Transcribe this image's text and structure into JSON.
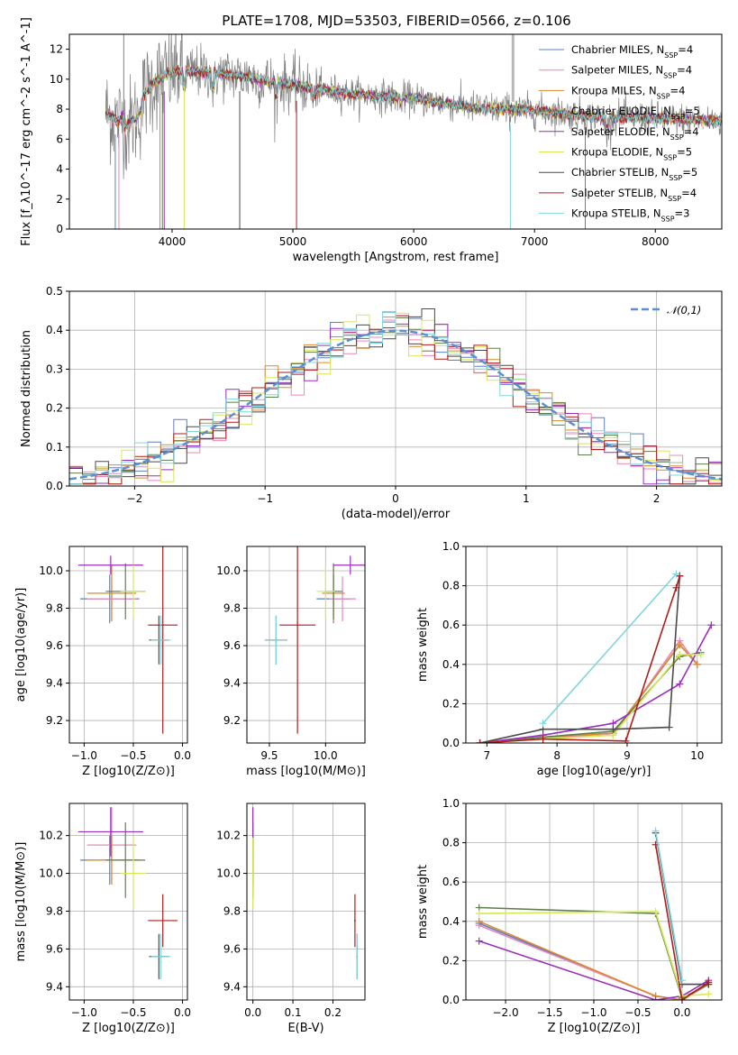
{
  "chart_data": [
    {
      "id": "spectrum",
      "type": "line",
      "title": "PLATE=1708, MJD=53503, FIBERID=0566, z=0.106",
      "xlabel": "wavelength [Angstrom, rest frame]",
      "ylabel": "Flux [f_λ10^-17 erg cm^-2 s^-1 A^-1]",
      "xlim": [
        3150,
        8550
      ],
      "ylim": [
        0,
        13
      ],
      "xticks": [
        4000,
        5000,
        6000,
        7000,
        8000
      ],
      "yticks": [
        0,
        2,
        4,
        6,
        8,
        10,
        12
      ],
      "grid": false,
      "legend_position": "top-right",
      "data_color": "#808080",
      "continuum": {
        "x": [
          3450,
          3550,
          3700,
          3850,
          4000,
          4200,
          4500,
          5000,
          5500,
          6000,
          6500,
          7000,
          7500,
          8000,
          8550
        ],
        "y": [
          7.8,
          7.2,
          8.2,
          9.8,
          10.5,
          10.5,
          10.3,
          9.6,
          9.0,
          8.7,
          8.1,
          7.9,
          7.5,
          7.4,
          7.2
        ]
      },
      "absorption_lines": [
        3530,
        3560,
        3900,
        3920,
        3935,
        4100,
        4560,
        5030,
        6800,
        7420
      ],
      "series": [
        {
          "name": "Chabrier MILES, N_SSP=4",
          "color": "#5b7fc4"
        },
        {
          "name": "Salpeter MILES, N_SSP=4",
          "color": "#e987b8"
        },
        {
          "name": "Kroupa MILES, N_SSP=4",
          "color": "#d98a2b"
        },
        {
          "name": "Chabrier ELODIE, N_SSP=5",
          "color": "#5e7f4c"
        },
        {
          "name": "Salpeter ELODIE, N_SSP=4",
          "color": "#9a2ebd"
        },
        {
          "name": "Kroupa ELODIE, N_SSP=5",
          "color": "#d7e855"
        },
        {
          "name": "Chabrier STELIB, N_SSP=5",
          "color": "#4a4a4a"
        },
        {
          "name": "Salpeter STELIB, N_SSP=4",
          "color": "#b01c1c"
        },
        {
          "name": "Kroupa STELIB, N_SSP=3",
          "color": "#7fd6de"
        }
      ]
    },
    {
      "id": "residuals",
      "type": "histogram",
      "xlabel": "(data-model)/error",
      "ylabel": "Normed distribution",
      "xlim": [
        -2.5,
        2.5
      ],
      "ylim": [
        0,
        0.5
      ],
      "xticks": [
        -2,
        -1,
        0,
        1,
        2
      ],
      "yticks": [
        0.0,
        0.1,
        0.2,
        0.3,
        0.4,
        0.5
      ],
      "grid": true,
      "legend_position": "top-right",
      "bin_width": 0.1,
      "reference_curve": {
        "name": "𝒩(0,1)",
        "color": "#5b8fd4"
      }
    },
    {
      "id": "age-vs-Z",
      "type": "scatter",
      "xlabel": "Z [log10(Z/Z⊙)]",
      "ylabel": "age [log10(age/yr)]",
      "xlim": [
        -1.15,
        0.05
      ],
      "ylim": [
        9.08,
        10.13
      ],
      "xticks": [
        -1.0,
        -0.5,
        0.0
      ],
      "yticks": [
        9.2,
        9.4,
        9.6,
        9.8,
        10.0
      ],
      "grid": true
    },
    {
      "id": "age-vs-mass",
      "type": "scatter",
      "xlabel": "mass [log10(M/M⊙)]",
      "ylabel": "",
      "xlim": [
        9.3,
        10.35
      ],
      "ylim": [
        9.08,
        10.13
      ],
      "xticks": [
        9.5,
        10.0
      ],
      "yticks": [
        9.2,
        9.4,
        9.6,
        9.8,
        10.0
      ],
      "grid": true
    },
    {
      "id": "mass-weight-vs-age",
      "type": "line",
      "xlabel": "age [log10(age/yr)]",
      "ylabel": "mass weight",
      "xlim": [
        6.7,
        10.35
      ],
      "ylim": [
        0,
        1.0
      ],
      "xticks": [
        7,
        8,
        9,
        10
      ],
      "yticks": [
        0.0,
        0.2,
        0.4,
        0.6,
        0.8,
        1.0
      ],
      "grid": true,
      "series": [
        {
          "color": "#5b7fc4",
          "x": [
            6.9,
            7.8,
            8.8,
            9.75,
            10.0
          ],
          "y": [
            0.0,
            0.03,
            0.05,
            0.5,
            0.4
          ]
        },
        {
          "color": "#e987b8",
          "x": [
            6.9,
            7.8,
            8.8,
            9.75,
            10.0
          ],
          "y": [
            0.0,
            0.03,
            0.04,
            0.52,
            0.4
          ]
        },
        {
          "color": "#d98a2b",
          "x": [
            6.9,
            7.8,
            8.8,
            9.75,
            10.0
          ],
          "y": [
            0.0,
            0.03,
            0.05,
            0.5,
            0.4
          ]
        },
        {
          "color": "#5e7f4c",
          "x": [
            6.9,
            7.8,
            8.8,
            9.75,
            10.05
          ],
          "y": [
            0.0,
            0.03,
            0.06,
            0.44,
            0.46
          ]
        },
        {
          "color": "#9a2ebd",
          "x": [
            6.9,
            7.8,
            8.8,
            9.75,
            10.2
          ],
          "y": [
            0.0,
            0.04,
            0.1,
            0.3,
            0.6
          ]
        },
        {
          "color": "#d7e855",
          "x": [
            6.9,
            7.8,
            8.8,
            9.75,
            10.05
          ],
          "y": [
            0.0,
            0.02,
            0.04,
            0.45,
            0.45
          ]
        },
        {
          "color": "#4a4a4a",
          "x": [
            6.9,
            7.8,
            8.8,
            9.6,
            9.75
          ],
          "y": [
            0.0,
            0.07,
            0.07,
            0.08,
            0.85
          ]
        },
        {
          "color": "#b01c1c",
          "x": [
            6.9,
            7.8,
            8.98,
            9.7,
            9.75
          ],
          "y": [
            0.0,
            0.02,
            0.01,
            0.79,
            0.85
          ]
        },
        {
          "color": "#7fd6de",
          "x": [
            7.8,
            9.7
          ],
          "y": [
            0.1,
            0.86
          ]
        }
      ]
    },
    {
      "id": "mass-vs-Z",
      "type": "scatter",
      "xlabel": "Z [log10(Z/Z⊙)]",
      "ylabel": "mass [log10(M/M⊙)]",
      "xlim": [
        -1.15,
        0.05
      ],
      "ylim": [
        9.33,
        10.37
      ],
      "xticks": [
        -1.0,
        -0.5,
        0.0
      ],
      "yticks": [
        9.4,
        9.6,
        9.8,
        10.0,
        10.2
      ],
      "grid": true
    },
    {
      "id": "mass-vs-EBV",
      "type": "scatter",
      "xlabel": "E(B-V)",
      "ylabel": "",
      "xlim": [
        -0.015,
        0.28
      ],
      "ylim": [
        9.33,
        10.37
      ],
      "xticks": [
        0.0,
        0.1,
        0.2
      ],
      "yticks": [
        9.4,
        9.6,
        9.8,
        10.0,
        10.2
      ],
      "grid": true
    },
    {
      "id": "mass-weight-vs-Z",
      "type": "line",
      "xlabel": "Z [log10(Z/Z⊙)]",
      "ylabel": "mass weight",
      "xlim": [
        -2.45,
        0.45
      ],
      "ylim": [
        0,
        1.0
      ],
      "xticks": [
        -2.0,
        -1.5,
        -1.0,
        -0.5,
        0.0
      ],
      "yticks": [
        0.0,
        0.2,
        0.4,
        0.6,
        0.8,
        1.0
      ],
      "grid": true,
      "series": [
        {
          "color": "#5b7fc4",
          "x": [
            -2.3,
            -0.3,
            0.0,
            0.3
          ],
          "y": [
            0.39,
            0.02,
            0.0,
            0.08
          ]
        },
        {
          "color": "#e987b8",
          "x": [
            -2.3,
            -0.3,
            0.0,
            0.3
          ],
          "y": [
            0.38,
            0.02,
            0.0,
            0.09
          ]
        },
        {
          "color": "#d98a2b",
          "x": [
            -2.3,
            -0.3,
            0.0,
            0.3
          ],
          "y": [
            0.4,
            0.02,
            0.0,
            0.08
          ]
        },
        {
          "color": "#5e7f4c",
          "x": [
            -2.3,
            -0.3,
            0.0,
            0.3
          ],
          "y": [
            0.47,
            0.44,
            0.01,
            0.08
          ]
        },
        {
          "color": "#9a2ebd",
          "x": [
            -2.3,
            -0.3,
            0.0,
            0.3
          ],
          "y": [
            0.3,
            0.0,
            0.02,
            0.1
          ]
        },
        {
          "color": "#d7e855",
          "x": [
            -2.3,
            -0.3,
            0.0,
            0.3
          ],
          "y": [
            0.44,
            0.45,
            0.02,
            0.03
          ]
        },
        {
          "color": "#4a4a4a",
          "x": [
            -0.3,
            0.0,
            0.3
          ],
          "y": [
            0.85,
            0.08,
            0.08
          ]
        },
        {
          "color": "#b01c1c",
          "x": [
            -0.3,
            0.0,
            0.3
          ],
          "y": [
            0.79,
            0.0,
            0.09
          ]
        },
        {
          "color": "#7fd6de",
          "x": [
            -0.3,
            0.0
          ],
          "y": [
            0.86,
            0.1
          ]
        }
      ]
    }
  ],
  "scatter_points": [
    {
      "color": "#5b7fc4",
      "Z": -0.74,
      "age": 9.85,
      "mass": 10.07,
      "ebv": 0.0
    },
    {
      "color": "#e987b8",
      "Z": -0.72,
      "age": 9.85,
      "mass": 10.15,
      "ebv": 0.0
    },
    {
      "color": "#d98a2b",
      "Z": -0.72,
      "age": 9.88,
      "mass": 10.07,
      "ebv": 0.0
    },
    {
      "color": "#5e7f4c",
      "Z": -0.58,
      "age": 9.89,
      "mass": 10.07,
      "ebv": 0.0
    },
    {
      "color": "#9a2ebd",
      "Z": -0.73,
      "age": 10.03,
      "mass": 10.22,
      "ebv": 0.0
    },
    {
      "color": "#d7e855",
      "Z": -0.5,
      "age": 9.89,
      "mass": 10.0,
      "ebv": 0.0
    },
    {
      "color": "#4a4a4a",
      "Z": -0.24,
      "age": 9.63,
      "mass": 9.56,
      "ebv": 0.26
    },
    {
      "color": "#b01c1c",
      "Z": -0.2,
      "age": 9.71,
      "mass": 9.75,
      "ebv": 0.255
    },
    {
      "color": "#7fd6de",
      "Z": -0.22,
      "age": 9.63,
      "mass": 9.56,
      "ebv": 0.26
    }
  ]
}
